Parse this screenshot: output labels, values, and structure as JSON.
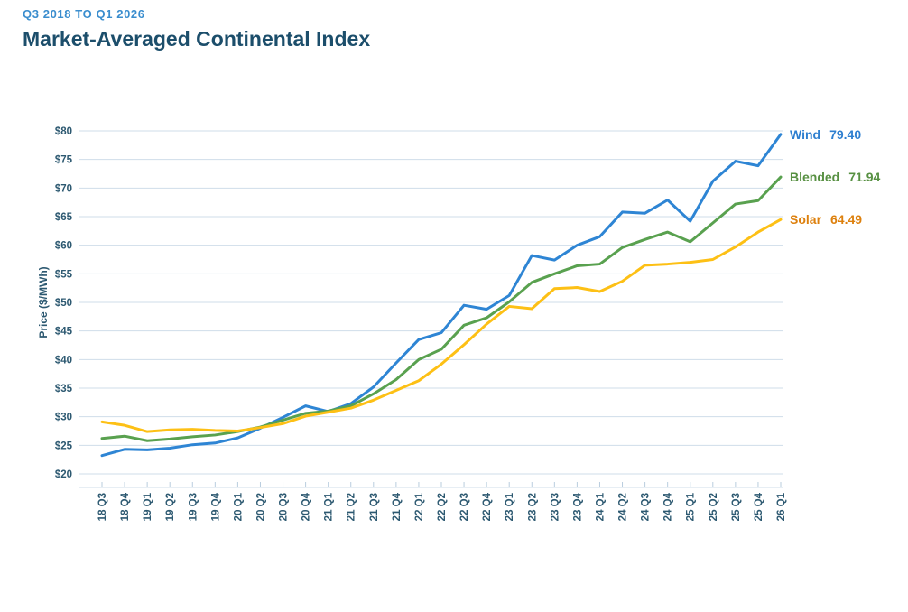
{
  "header": {
    "subtitle": "Q3 2018 TO Q1 2026",
    "title": "Market-Averaged Continental Index"
  },
  "colors": {
    "subtitle_blue": "#3a8dce",
    "title_navy": "#1c4e6b",
    "axis_text": "#2d5971",
    "gridline": "#cfdde9"
  },
  "chart_data": {
    "type": "line",
    "title": "Market-Averaged Continental Index",
    "subtitle": "Q3 2018 TO Q1 2026",
    "xlabel": "",
    "ylabel": "Price ($/MWh)",
    "ylim": [
      20,
      80
    ],
    "ytick_step": 5,
    "ytick_prefix": "$",
    "grid": true,
    "legend_position": "right-of-line-ends",
    "categories": [
      "18 Q3",
      "18 Q4",
      "19 Q1",
      "19 Q2",
      "19 Q3",
      "19 Q4",
      "20 Q1",
      "20 Q2",
      "20 Q3",
      "20 Q4",
      "21 Q1",
      "21 Q2",
      "21 Q3",
      "21 Q4",
      "22 Q1",
      "22 Q2",
      "22 Q3",
      "22 Q4",
      "23 Q1",
      "23 Q2",
      "23 Q3",
      "23 Q4",
      "24 Q1",
      "24 Q2",
      "24 Q3",
      "24 Q4",
      "25 Q1",
      "25 Q2",
      "25 Q3",
      "25 Q4",
      "26 Q1"
    ],
    "series": [
      {
        "name": "Wind",
        "end_label_value": "79.40",
        "line_color": "#2e85d4",
        "label_color": "#2e7fd0",
        "values": [
          23.2,
          24.3,
          24.2,
          24.5,
          25.1,
          25.4,
          26.3,
          28.0,
          29.9,
          31.9,
          30.9,
          32.3,
          35.2,
          39.4,
          43.5,
          44.7,
          49.5,
          48.8,
          51.2,
          58.2,
          57.4,
          60.0,
          61.5,
          65.8,
          65.6,
          67.9,
          64.2,
          71.2,
          74.7,
          73.9,
          79.4
        ]
      },
      {
        "name": "Blended",
        "end_label_value": "71.94",
        "line_color": "#59a14f",
        "label_color": "#579042",
        "values": [
          26.2,
          26.6,
          25.8,
          26.1,
          26.5,
          26.8,
          27.4,
          28.2,
          29.4,
          30.6,
          31.0,
          31.9,
          34.0,
          36.5,
          40.0,
          41.8,
          46.0,
          47.3,
          50.1,
          53.5,
          55.0,
          56.4,
          56.7,
          59.6,
          61.0,
          62.3,
          60.6,
          63.9,
          67.2,
          67.8,
          71.94
        ]
      },
      {
        "name": "Solar",
        "end_label_value": "64.49",
        "line_color": "#fdc015",
        "label_color": "#dd800d",
        "values": [
          29.1,
          28.5,
          27.4,
          27.7,
          27.8,
          27.6,
          27.5,
          28.1,
          28.8,
          30.1,
          30.8,
          31.5,
          32.9,
          34.6,
          36.3,
          39.2,
          42.6,
          46.2,
          49.3,
          48.9,
          52.4,
          52.6,
          51.9,
          53.7,
          56.5,
          56.7,
          57.0,
          57.5,
          59.7,
          62.3,
          64.49
        ]
      }
    ]
  }
}
